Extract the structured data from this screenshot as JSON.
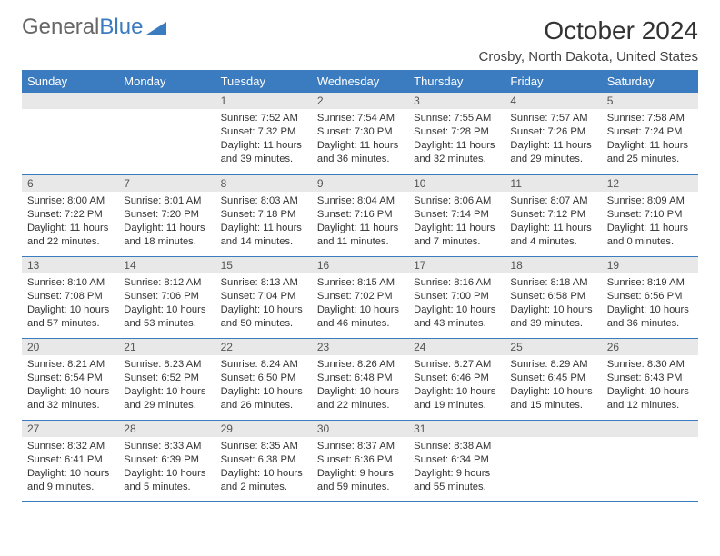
{
  "logo": {
    "part1": "General",
    "part2": "Blue"
  },
  "title": "October 2024",
  "location": "Crosby, North Dakota, United States",
  "header_bg": "#3b7bbf",
  "daynum_bg": "#e8e8e8",
  "weekdays": [
    "Sunday",
    "Monday",
    "Tuesday",
    "Wednesday",
    "Thursday",
    "Friday",
    "Saturday"
  ],
  "weeks": [
    [
      {
        "n": "",
        "sr": "",
        "ss": "",
        "dl": ""
      },
      {
        "n": "",
        "sr": "",
        "ss": "",
        "dl": ""
      },
      {
        "n": "1",
        "sr": "Sunrise: 7:52 AM",
        "ss": "Sunset: 7:32 PM",
        "dl": "Daylight: 11 hours and 39 minutes."
      },
      {
        "n": "2",
        "sr": "Sunrise: 7:54 AM",
        "ss": "Sunset: 7:30 PM",
        "dl": "Daylight: 11 hours and 36 minutes."
      },
      {
        "n": "3",
        "sr": "Sunrise: 7:55 AM",
        "ss": "Sunset: 7:28 PM",
        "dl": "Daylight: 11 hours and 32 minutes."
      },
      {
        "n": "4",
        "sr": "Sunrise: 7:57 AM",
        "ss": "Sunset: 7:26 PM",
        "dl": "Daylight: 11 hours and 29 minutes."
      },
      {
        "n": "5",
        "sr": "Sunrise: 7:58 AM",
        "ss": "Sunset: 7:24 PM",
        "dl": "Daylight: 11 hours and 25 minutes."
      }
    ],
    [
      {
        "n": "6",
        "sr": "Sunrise: 8:00 AM",
        "ss": "Sunset: 7:22 PM",
        "dl": "Daylight: 11 hours and 22 minutes."
      },
      {
        "n": "7",
        "sr": "Sunrise: 8:01 AM",
        "ss": "Sunset: 7:20 PM",
        "dl": "Daylight: 11 hours and 18 minutes."
      },
      {
        "n": "8",
        "sr": "Sunrise: 8:03 AM",
        "ss": "Sunset: 7:18 PM",
        "dl": "Daylight: 11 hours and 14 minutes."
      },
      {
        "n": "9",
        "sr": "Sunrise: 8:04 AM",
        "ss": "Sunset: 7:16 PM",
        "dl": "Daylight: 11 hours and 11 minutes."
      },
      {
        "n": "10",
        "sr": "Sunrise: 8:06 AM",
        "ss": "Sunset: 7:14 PM",
        "dl": "Daylight: 11 hours and 7 minutes."
      },
      {
        "n": "11",
        "sr": "Sunrise: 8:07 AM",
        "ss": "Sunset: 7:12 PM",
        "dl": "Daylight: 11 hours and 4 minutes."
      },
      {
        "n": "12",
        "sr": "Sunrise: 8:09 AM",
        "ss": "Sunset: 7:10 PM",
        "dl": "Daylight: 11 hours and 0 minutes."
      }
    ],
    [
      {
        "n": "13",
        "sr": "Sunrise: 8:10 AM",
        "ss": "Sunset: 7:08 PM",
        "dl": "Daylight: 10 hours and 57 minutes."
      },
      {
        "n": "14",
        "sr": "Sunrise: 8:12 AM",
        "ss": "Sunset: 7:06 PM",
        "dl": "Daylight: 10 hours and 53 minutes."
      },
      {
        "n": "15",
        "sr": "Sunrise: 8:13 AM",
        "ss": "Sunset: 7:04 PM",
        "dl": "Daylight: 10 hours and 50 minutes."
      },
      {
        "n": "16",
        "sr": "Sunrise: 8:15 AM",
        "ss": "Sunset: 7:02 PM",
        "dl": "Daylight: 10 hours and 46 minutes."
      },
      {
        "n": "17",
        "sr": "Sunrise: 8:16 AM",
        "ss": "Sunset: 7:00 PM",
        "dl": "Daylight: 10 hours and 43 minutes."
      },
      {
        "n": "18",
        "sr": "Sunrise: 8:18 AM",
        "ss": "Sunset: 6:58 PM",
        "dl": "Daylight: 10 hours and 39 minutes."
      },
      {
        "n": "19",
        "sr": "Sunrise: 8:19 AM",
        "ss": "Sunset: 6:56 PM",
        "dl": "Daylight: 10 hours and 36 minutes."
      }
    ],
    [
      {
        "n": "20",
        "sr": "Sunrise: 8:21 AM",
        "ss": "Sunset: 6:54 PM",
        "dl": "Daylight: 10 hours and 32 minutes."
      },
      {
        "n": "21",
        "sr": "Sunrise: 8:23 AM",
        "ss": "Sunset: 6:52 PM",
        "dl": "Daylight: 10 hours and 29 minutes."
      },
      {
        "n": "22",
        "sr": "Sunrise: 8:24 AM",
        "ss": "Sunset: 6:50 PM",
        "dl": "Daylight: 10 hours and 26 minutes."
      },
      {
        "n": "23",
        "sr": "Sunrise: 8:26 AM",
        "ss": "Sunset: 6:48 PM",
        "dl": "Daylight: 10 hours and 22 minutes."
      },
      {
        "n": "24",
        "sr": "Sunrise: 8:27 AM",
        "ss": "Sunset: 6:46 PM",
        "dl": "Daylight: 10 hours and 19 minutes."
      },
      {
        "n": "25",
        "sr": "Sunrise: 8:29 AM",
        "ss": "Sunset: 6:45 PM",
        "dl": "Daylight: 10 hours and 15 minutes."
      },
      {
        "n": "26",
        "sr": "Sunrise: 8:30 AM",
        "ss": "Sunset: 6:43 PM",
        "dl": "Daylight: 10 hours and 12 minutes."
      }
    ],
    [
      {
        "n": "27",
        "sr": "Sunrise: 8:32 AM",
        "ss": "Sunset: 6:41 PM",
        "dl": "Daylight: 10 hours and 9 minutes."
      },
      {
        "n": "28",
        "sr": "Sunrise: 8:33 AM",
        "ss": "Sunset: 6:39 PM",
        "dl": "Daylight: 10 hours and 5 minutes."
      },
      {
        "n": "29",
        "sr": "Sunrise: 8:35 AM",
        "ss": "Sunset: 6:38 PM",
        "dl": "Daylight: 10 hours and 2 minutes."
      },
      {
        "n": "30",
        "sr": "Sunrise: 8:37 AM",
        "ss": "Sunset: 6:36 PM",
        "dl": "Daylight: 9 hours and 59 minutes."
      },
      {
        "n": "31",
        "sr": "Sunrise: 8:38 AM",
        "ss": "Sunset: 6:34 PM",
        "dl": "Daylight: 9 hours and 55 minutes."
      },
      {
        "n": "",
        "sr": "",
        "ss": "",
        "dl": ""
      },
      {
        "n": "",
        "sr": "",
        "ss": "",
        "dl": ""
      }
    ]
  ]
}
